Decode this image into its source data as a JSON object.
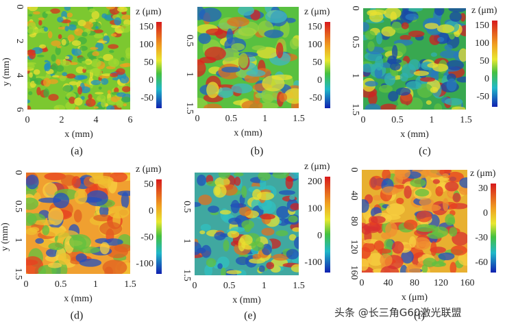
{
  "panels": [
    {
      "label": "(a)",
      "x_label": "x (mm)",
      "y_label": "y (mm)",
      "x_ticks": [
        0,
        2,
        4,
        6
      ],
      "y_ticks": [
        0,
        2,
        4,
        6
      ],
      "colorbar_label": "z (μm)",
      "colorbar_ticks": [
        150,
        100,
        50,
        0,
        -50
      ]
    },
    {
      "label": "(b)",
      "x_label": "x (mm)",
      "x_ticks": [
        0,
        0.5,
        1,
        1.5
      ],
      "y_ticks": [
        0.5,
        1,
        1.5
      ],
      "colorbar_label": "z (μm)",
      "colorbar_ticks": [
        150,
        100,
        50,
        0,
        -50
      ]
    },
    {
      "label": "(c)",
      "x_label": "x (mm)",
      "x_ticks": [
        0,
        0.5,
        1,
        1.5
      ],
      "y_ticks": [
        0,
        0.5,
        1,
        1.5
      ],
      "colorbar_label": "z (μm)",
      "colorbar_ticks": [
        150,
        100,
        50,
        0,
        -50
      ]
    },
    {
      "label": "(d)",
      "x_label": "x (mm)",
      "y_label": "y (mm)",
      "x_ticks": [
        0,
        0.5,
        1,
        1.5
      ],
      "y_ticks": [
        0,
        0.5,
        1,
        1.5
      ],
      "colorbar_label": "z (μm)",
      "colorbar_ticks": [
        50,
        0,
        -50,
        -100
      ]
    },
    {
      "label": "(e)",
      "x_label": "x (mm)",
      "x_ticks": [
        0,
        0.5,
        1,
        1.5
      ],
      "y_ticks": [
        0.5,
        1,
        1.5
      ],
      "colorbar_label": "z (μm)",
      "colorbar_ticks": [
        200,
        100,
        0,
        -100
      ]
    },
    {
      "label": "(f)",
      "x_label": "x (μm)",
      "x_ticks": [
        0,
        40,
        80,
        120,
        160
      ],
      "y_ticks": [
        0,
        40,
        80,
        120,
        160
      ],
      "colorbar_label": "z (μm)",
      "colorbar_ticks": [
        30,
        0,
        -30,
        -60
      ]
    }
  ],
  "watermark": "头条 @长三角G60激光联盟"
}
